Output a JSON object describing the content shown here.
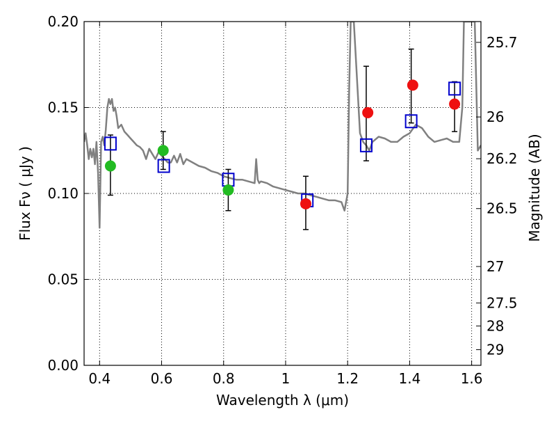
{
  "chart_data": {
    "type": "scatter",
    "title": "",
    "xlabel": "Wavelength  λ (μm)",
    "ylabel": "Flux  Fν  ( μJy )",
    "y2label": "Magnitude (AB)",
    "xlim": [
      0.35,
      1.63
    ],
    "ylim": [
      0.0,
      0.2
    ],
    "grid": true,
    "x_ticks": [
      0.4,
      0.6,
      0.8,
      1.0,
      1.2,
      1.4,
      1.6
    ],
    "x_tick_labels": [
      "0.4",
      "0.6",
      "0.8",
      "1",
      "1.2",
      "1.4",
      "1.6"
    ],
    "y_ticks": [
      0.0,
      0.05,
      0.1,
      0.15,
      0.2
    ],
    "y_tick_labels": [
      "0.00",
      "0.05",
      "0.10",
      "0.15",
      "0.20"
    ],
    "y2_ticks": [
      {
        "label": "25.7",
        "flux": 0.1879
      },
      {
        "label": "26",
        "flux": 0.1445
      },
      {
        "label": "26.2",
        "flux": 0.1202
      },
      {
        "label": "26.5",
        "flux": 0.0912
      },
      {
        "label": "27",
        "flux": 0.0575
      },
      {
        "label": "27.5",
        "flux": 0.0363
      },
      {
        "label": "28",
        "flux": 0.0229
      },
      {
        "label": "29",
        "flux": 0.0091
      }
    ],
    "colors": {
      "template": "#808080",
      "green_points": "#22bb22",
      "red_points": "#ee1111",
      "model_boxes": "#0000cc",
      "errorbars": "#000000"
    },
    "series": [
      {
        "kind": "template",
        "x": [
          0.35,
          0.355,
          0.36,
          0.365,
          0.37,
          0.375,
          0.38,
          0.385,
          0.39,
          0.395,
          0.4,
          0.405,
          0.41,
          0.415,
          0.42,
          0.425,
          0.43,
          0.435,
          0.44,
          0.445,
          0.45,
          0.455,
          0.46,
          0.47,
          0.48,
          0.49,
          0.5,
          0.51,
          0.52,
          0.53,
          0.54,
          0.55,
          0.56,
          0.57,
          0.58,
          0.59,
          0.6,
          0.61,
          0.62,
          0.63,
          0.64,
          0.65,
          0.66,
          0.67,
          0.68,
          0.7,
          0.72,
          0.74,
          0.76,
          0.78,
          0.8,
          0.82,
          0.84,
          0.86,
          0.88,
          0.9,
          0.905,
          0.91,
          0.915,
          0.92,
          0.94,
          0.96,
          0.98,
          1.0,
          1.02,
          1.04,
          1.06,
          1.08,
          1.1,
          1.12,
          1.14,
          1.16,
          1.18,
          1.19,
          1.2,
          1.205,
          1.21,
          1.215,
          1.22,
          1.24,
          1.25,
          1.26,
          1.27,
          1.28,
          1.3,
          1.32,
          1.34,
          1.36,
          1.38,
          1.4,
          1.42,
          1.44,
          1.46,
          1.48,
          1.5,
          1.52,
          1.54,
          1.56,
          1.57,
          1.575,
          1.58,
          1.585,
          1.59,
          1.6,
          1.61,
          1.62,
          1.63
        ],
        "y": [
          0.13,
          0.135,
          0.128,
          0.12,
          0.126,
          0.121,
          0.126,
          0.117,
          0.13,
          0.112,
          0.08,
          0.13,
          0.133,
          0.128,
          0.137,
          0.15,
          0.155,
          0.152,
          0.155,
          0.148,
          0.15,
          0.145,
          0.138,
          0.14,
          0.136,
          0.134,
          0.132,
          0.13,
          0.128,
          0.127,
          0.125,
          0.12,
          0.126,
          0.123,
          0.12,
          0.124,
          0.122,
          0.12,
          0.118,
          0.118,
          0.122,
          0.118,
          0.123,
          0.117,
          0.12,
          0.118,
          0.116,
          0.115,
          0.113,
          0.112,
          0.11,
          0.109,
          0.108,
          0.108,
          0.107,
          0.106,
          0.12,
          0.108,
          0.106,
          0.107,
          0.106,
          0.104,
          0.103,
          0.102,
          0.101,
          0.1,
          0.1,
          0.099,
          0.098,
          0.097,
          0.096,
          0.096,
          0.095,
          0.09,
          0.1,
          0.16,
          0.2,
          0.2,
          0.2,
          0.135,
          0.13,
          0.128,
          0.125,
          0.13,
          0.133,
          0.132,
          0.13,
          0.13,
          0.133,
          0.135,
          0.14,
          0.138,
          0.133,
          0.13,
          0.131,
          0.132,
          0.13,
          0.13,
          0.15,
          0.2,
          0.2,
          0.2,
          0.2,
          0.2,
          0.2,
          0.125,
          0.128
        ]
      },
      {
        "kind": "observed",
        "color": "green",
        "x": [
          0.435,
          0.605,
          0.815
        ],
        "y": [
          0.116,
          0.125,
          0.102
        ]
      },
      {
        "kind": "observed",
        "color": "red",
        "x": [
          1.065,
          1.265,
          1.41,
          1.545
        ],
        "y": [
          0.094,
          0.147,
          0.163,
          0.152
        ]
      },
      {
        "kind": "errorbars",
        "x": [
          0.435,
          0.605,
          0.815,
          1.065,
          1.26,
          1.405,
          1.545
        ],
        "low": [
          0.099,
          0.114,
          0.09,
          0.079,
          0.119,
          0.141,
          0.136
        ],
        "high": [
          0.134,
          0.136,
          0.114,
          0.11,
          0.174,
          0.184,
          0.165
        ]
      },
      {
        "kind": "model_boxes",
        "x": [
          0.435,
          0.607,
          0.815,
          1.07,
          1.26,
          1.405,
          1.545
        ],
        "y": [
          0.129,
          0.116,
          0.108,
          0.096,
          0.128,
          0.142,
          0.161
        ]
      }
    ]
  }
}
